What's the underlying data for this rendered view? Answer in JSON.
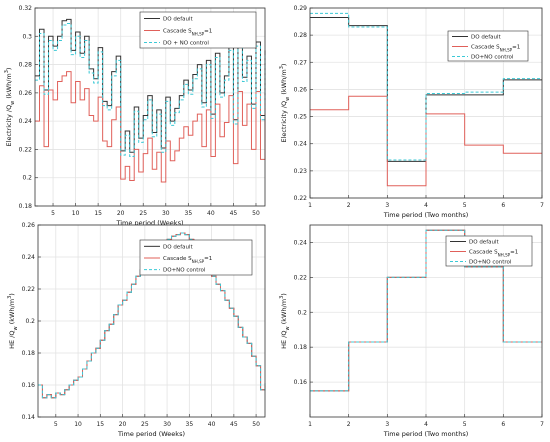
{
  "chart_data": [
    {
      "type": "line",
      "step": true,
      "xlabel": "Time period (Weeks)",
      "ylabel": "Electricity /Q",
      "ylabel_sub": "w",
      "ylabel_unit": "(kWh/m",
      "ylabel_unit_sup": "3",
      "ylabel_unit_end": ")",
      "xlim": [
        1,
        52
      ],
      "ylim": [
        0.18,
        0.32
      ],
      "xticks": [
        "5",
        "10",
        "15",
        "20",
        "25",
        "30",
        "35",
        "40",
        "45",
        "50"
      ],
      "yticks": [
        "0.18",
        "0.2",
        "0.22",
        "0.24",
        "0.26",
        "0.28",
        "0.3",
        "0.32"
      ],
      "grid": true,
      "legend_position": "top-right",
      "series": [
        {
          "name": "DO default",
          "color": "#333333",
          "dash": "solid",
          "x": [
            1,
            2,
            3,
            4,
            5,
            6,
            7,
            8,
            9,
            10,
            11,
            12,
            13,
            14,
            15,
            16,
            17,
            18,
            19,
            20,
            21,
            22,
            23,
            24,
            25,
            26,
            27,
            28,
            29,
            30,
            31,
            32,
            33,
            34,
            35,
            36,
            37,
            38,
            39,
            40,
            41,
            42,
            43,
            44,
            45,
            46,
            47,
            48,
            49,
            50,
            51,
            52
          ],
          "y": [
            0.272,
            0.305,
            0.262,
            0.3,
            0.293,
            0.3,
            0.311,
            0.312,
            0.29,
            0.303,
            0.288,
            0.3,
            0.277,
            0.27,
            0.292,
            0.254,
            0.251,
            0.275,
            0.286,
            0.219,
            0.233,
            0.218,
            0.25,
            0.228,
            0.244,
            0.258,
            0.232,
            0.248,
            0.221,
            0.257,
            0.24,
            0.249,
            0.258,
            0.269,
            0.262,
            0.273,
            0.28,
            0.253,
            0.283,
            0.245,
            0.288,
            0.26,
            0.272,
            0.293,
            0.241,
            0.296,
            0.271,
            0.286,
            0.252,
            0.296,
            0.244,
            0.29
          ]
        },
        {
          "name": "Cascade S_{NH,SP}=1",
          "color": "#e0605a",
          "dash": "solid",
          "x": [
            1,
            2,
            3,
            4,
            5,
            6,
            7,
            8,
            9,
            10,
            11,
            12,
            13,
            14,
            15,
            16,
            17,
            18,
            19,
            20,
            21,
            22,
            23,
            24,
            25,
            26,
            27,
            28,
            29,
            30,
            31,
            32,
            33,
            34,
            35,
            36,
            37,
            38,
            39,
            40,
            41,
            42,
            43,
            44,
            45,
            46,
            47,
            48,
            49,
            50,
            51,
            52
          ],
          "y": [
            0.24,
            0.265,
            0.222,
            0.262,
            0.255,
            0.268,
            0.272,
            0.275,
            0.253,
            0.268,
            0.255,
            0.263,
            0.244,
            0.24,
            0.257,
            0.226,
            0.222,
            0.241,
            0.25,
            0.199,
            0.208,
            0.198,
            0.22,
            0.204,
            0.217,
            0.228,
            0.206,
            0.218,
            0.197,
            0.226,
            0.212,
            0.219,
            0.228,
            0.236,
            0.23,
            0.24,
            0.245,
            0.222,
            0.248,
            0.215,
            0.252,
            0.229,
            0.239,
            0.258,
            0.21,
            0.261,
            0.237,
            0.252,
            0.22,
            0.261,
            0.213,
            0.253
          ]
        },
        {
          "name": "DO + NO control",
          "color": "#3cc9d6",
          "dash": "dashed",
          "x": [
            1,
            2,
            3,
            4,
            5,
            6,
            7,
            8,
            9,
            10,
            11,
            12,
            13,
            14,
            15,
            16,
            17,
            18,
            19,
            20,
            21,
            22,
            23,
            24,
            25,
            26,
            27,
            28,
            29,
            30,
            31,
            32,
            33,
            34,
            35,
            36,
            37,
            38,
            39,
            40,
            41,
            42,
            43,
            44,
            45,
            46,
            47,
            48,
            49,
            50,
            51,
            52
          ],
          "y": [
            0.269,
            0.302,
            0.259,
            0.297,
            0.29,
            0.297,
            0.308,
            0.309,
            0.287,
            0.3,
            0.285,
            0.297,
            0.274,
            0.267,
            0.289,
            0.251,
            0.248,
            0.272,
            0.283,
            0.216,
            0.23,
            0.215,
            0.247,
            0.225,
            0.241,
            0.255,
            0.229,
            0.245,
            0.218,
            0.254,
            0.237,
            0.246,
            0.255,
            0.266,
            0.259,
            0.27,
            0.277,
            0.25,
            0.28,
            0.242,
            0.285,
            0.257,
            0.269,
            0.29,
            0.238,
            0.293,
            0.268,
            0.283,
            0.249,
            0.293,
            0.241,
            0.287
          ]
        }
      ]
    },
    {
      "type": "line",
      "step": true,
      "xlabel": "Time period (Two months)",
      "ylabel": "Electricity /Q",
      "ylabel_sub": "w",
      "ylabel_unit": "(kWh/m",
      "ylabel_unit_sup": "3",
      "ylabel_unit_end": ")",
      "xlim": [
        1,
        7
      ],
      "ylim": [
        0.22,
        0.29
      ],
      "xticks": [
        "1",
        "2",
        "3",
        "4",
        "5",
        "6",
        "7"
      ],
      "yticks": [
        "0.22",
        "0.23",
        "0.24",
        "0.25",
        "0.26",
        "0.27",
        "0.28",
        "0.29"
      ],
      "grid": true,
      "legend_position": "top-right",
      "series": [
        {
          "name": "DO default",
          "color": "#333333",
          "dash": "solid",
          "x": [
            1,
            2,
            3,
            4,
            5,
            6,
            7
          ],
          "y": [
            0.2865,
            0.2835,
            0.2335,
            0.258,
            0.258,
            0.2635,
            0.2635
          ]
        },
        {
          "name": "Cascade S_{NH,SP}=1",
          "color": "#e0605a",
          "dash": "solid",
          "x": [
            1,
            2,
            3,
            4,
            5,
            6,
            7
          ],
          "y": [
            0.2525,
            0.2575,
            0.2245,
            0.251,
            0.2395,
            0.2365,
            0.2365
          ]
        },
        {
          "name": "DO+NO control",
          "color": "#3cc9d6",
          "dash": "dashed",
          "x": [
            1,
            2,
            3,
            4,
            5,
            6,
            7
          ],
          "y": [
            0.288,
            0.283,
            0.234,
            0.2585,
            0.259,
            0.264,
            0.264
          ]
        }
      ]
    },
    {
      "type": "line",
      "step": true,
      "xlabel": "Time period (Weeks)",
      "ylabel": "HE /Q",
      "ylabel_sub": "w",
      "ylabel_unit": "(kWh/m",
      "ylabel_unit_sup": "3",
      "ylabel_unit_end": ")",
      "xlim": [
        1,
        52
      ],
      "ylim": [
        0.14,
        0.26
      ],
      "xticks": [
        "5",
        "10",
        "15",
        "20",
        "25",
        "30",
        "35",
        "40",
        "45",
        "50"
      ],
      "yticks": [
        "0.14",
        "0.16",
        "0.18",
        "0.2",
        "0.22",
        "0.24",
        "0.26"
      ],
      "grid": true,
      "legend_position": "top-right",
      "series": [
        {
          "name": "DO default",
          "color": "#333333",
          "dash": "solid",
          "x": [
            1,
            2,
            3,
            4,
            5,
            6,
            7,
            8,
            9,
            10,
            11,
            12,
            13,
            14,
            15,
            16,
            17,
            18,
            19,
            20,
            21,
            22,
            23,
            24,
            25,
            26,
            27,
            28,
            29,
            30,
            31,
            32,
            33,
            34,
            35,
            36,
            37,
            38,
            39,
            40,
            41,
            42,
            43,
            44,
            45,
            46,
            47,
            48,
            49,
            50,
            51,
            52
          ],
          "y": [
            0.16,
            0.152,
            0.154,
            0.152,
            0.155,
            0.154,
            0.157,
            0.16,
            0.163,
            0.165,
            0.17,
            0.175,
            0.18,
            0.183,
            0.188,
            0.194,
            0.198,
            0.204,
            0.21,
            0.213,
            0.218,
            0.223,
            0.228,
            0.232,
            0.236,
            0.24,
            0.243,
            0.246,
            0.25,
            0.251,
            0.253,
            0.254,
            0.255,
            0.254,
            0.251,
            0.249,
            0.245,
            0.239,
            0.236,
            0.228,
            0.223,
            0.219,
            0.213,
            0.208,
            0.203,
            0.196,
            0.19,
            0.186,
            0.178,
            0.172,
            0.157,
            0.161
          ]
        },
        {
          "name": "Cascade S_{NH,SP}=1",
          "color": "#e0605a",
          "dash": "solid",
          "x": [
            1,
            2,
            3,
            4,
            5,
            6,
            7,
            8,
            9,
            10,
            11,
            12,
            13,
            14,
            15,
            16,
            17,
            18,
            19,
            20,
            21,
            22,
            23,
            24,
            25,
            26,
            27,
            28,
            29,
            30,
            31,
            32,
            33,
            34,
            35,
            36,
            37,
            38,
            39,
            40,
            41,
            42,
            43,
            44,
            45,
            46,
            47,
            48,
            49,
            50,
            51,
            52
          ],
          "y": [
            0.16,
            0.152,
            0.154,
            0.152,
            0.155,
            0.154,
            0.157,
            0.16,
            0.163,
            0.165,
            0.17,
            0.175,
            0.18,
            0.183,
            0.188,
            0.194,
            0.198,
            0.204,
            0.21,
            0.213,
            0.218,
            0.223,
            0.228,
            0.232,
            0.236,
            0.24,
            0.243,
            0.246,
            0.25,
            0.251,
            0.253,
            0.254,
            0.255,
            0.254,
            0.251,
            0.249,
            0.245,
            0.239,
            0.236,
            0.228,
            0.223,
            0.219,
            0.213,
            0.208,
            0.203,
            0.196,
            0.19,
            0.186,
            0.178,
            0.172,
            0.157,
            0.161
          ]
        },
        {
          "name": "DO+NO control",
          "color": "#3cc9d6",
          "dash": "dashed",
          "x": [
            1,
            2,
            3,
            4,
            5,
            6,
            7,
            8,
            9,
            10,
            11,
            12,
            13,
            14,
            15,
            16,
            17,
            18,
            19,
            20,
            21,
            22,
            23,
            24,
            25,
            26,
            27,
            28,
            29,
            30,
            31,
            32,
            33,
            34,
            35,
            36,
            37,
            38,
            39,
            40,
            41,
            42,
            43,
            44,
            45,
            46,
            47,
            48,
            49,
            50,
            51,
            52
          ],
          "y": [
            0.16,
            0.152,
            0.154,
            0.152,
            0.155,
            0.154,
            0.157,
            0.16,
            0.163,
            0.165,
            0.17,
            0.175,
            0.18,
            0.183,
            0.188,
            0.194,
            0.198,
            0.204,
            0.21,
            0.213,
            0.218,
            0.223,
            0.228,
            0.232,
            0.236,
            0.24,
            0.243,
            0.246,
            0.25,
            0.251,
            0.253,
            0.254,
            0.255,
            0.254,
            0.251,
            0.249,
            0.245,
            0.239,
            0.236,
            0.228,
            0.223,
            0.219,
            0.213,
            0.208,
            0.203,
            0.196,
            0.19,
            0.186,
            0.178,
            0.172,
            0.157,
            0.161
          ]
        }
      ]
    },
    {
      "type": "line",
      "step": true,
      "xlabel": "Time period (Two months)",
      "ylabel": "HE /Q",
      "ylabel_sub": "w",
      "ylabel_unit": "(kWh/m",
      "ylabel_unit_sup": "3",
      "ylabel_unit_end": ")",
      "xlim": [
        1,
        7
      ],
      "ylim": [
        0.14,
        0.25
      ],
      "xticks": [
        "1",
        "2",
        "3",
        "4",
        "5",
        "6",
        "7"
      ],
      "yticks": [
        "0.16",
        "0.18",
        "0.2",
        "0.22",
        "0.24"
      ],
      "grid": true,
      "legend_position": "top-right",
      "series": [
        {
          "name": "DO default",
          "color": "#333333",
          "dash": "solid",
          "x": [
            1,
            2,
            3,
            4,
            5,
            6,
            7
          ],
          "y": [
            0.155,
            0.183,
            0.22,
            0.247,
            0.226,
            0.183,
            0.183
          ]
        },
        {
          "name": "Cascade S_{NH,SP}=1",
          "color": "#e0605a",
          "dash": "solid",
          "x": [
            1,
            2,
            3,
            4,
            5,
            6,
            7
          ],
          "y": [
            0.155,
            0.183,
            0.22,
            0.247,
            0.226,
            0.183,
            0.183
          ]
        },
        {
          "name": "DO+NO control",
          "color": "#3cc9d6",
          "dash": "dashed",
          "x": [
            1,
            2,
            3,
            4,
            5,
            6,
            7
          ],
          "y": [
            0.155,
            0.183,
            0.22,
            0.247,
            0.226,
            0.183,
            0.183
          ]
        }
      ]
    }
  ]
}
